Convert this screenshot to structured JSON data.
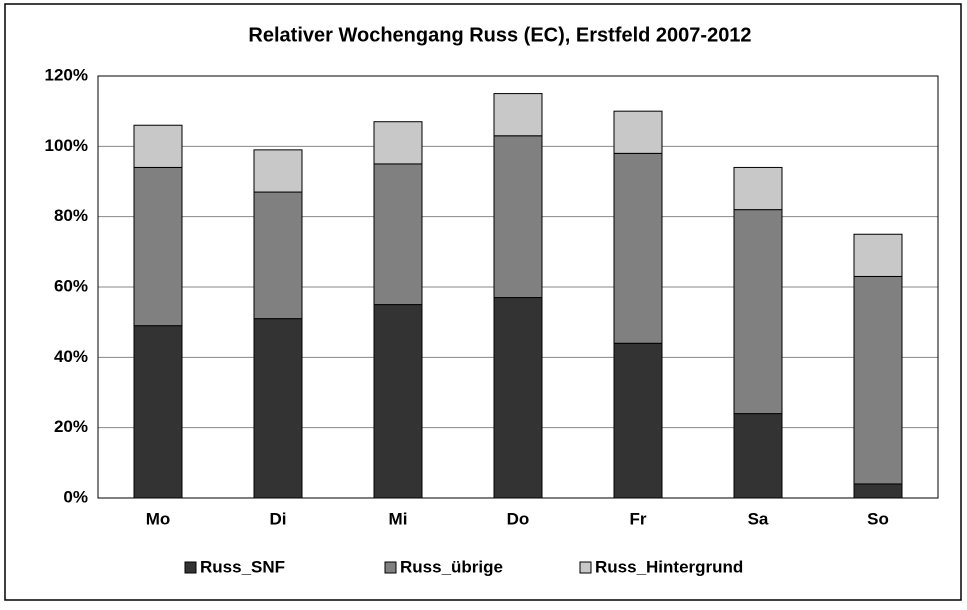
{
  "chart_data": {
    "type": "stacked_bar",
    "title": "Relativer Wochengang Russ (EC), Erstfeld 2007-2012",
    "categories": [
      "Mo",
      "Di",
      "Mi",
      "Do",
      "Fr",
      "Sa",
      "So"
    ],
    "series": [
      {
        "name": "Russ_SNF",
        "color": "#333333",
        "values": [
          49,
          51,
          55,
          57,
          44,
          24,
          4
        ]
      },
      {
        "name": "Russ_übrige",
        "color": "#808080",
        "values": [
          45,
          36,
          40,
          46,
          54,
          58,
          59
        ]
      },
      {
        "name": "Russ_Hintergrund",
        "color": "#c8c8c8",
        "values": [
          12,
          12,
          12,
          12,
          12,
          12,
          12
        ]
      }
    ],
    "ylim": [
      0,
      120
    ],
    "yticks": [
      {
        "value": 0,
        "label": "0%"
      },
      {
        "value": 20,
        "label": "20%"
      },
      {
        "value": 40,
        "label": "40%"
      },
      {
        "value": 60,
        "label": "60%"
      },
      {
        "value": 80,
        "label": "80%"
      },
      {
        "value": 100,
        "label": "100%"
      },
      {
        "value": 120,
        "label": "120%"
      }
    ],
    "grid": true,
    "legend": "bottom"
  }
}
